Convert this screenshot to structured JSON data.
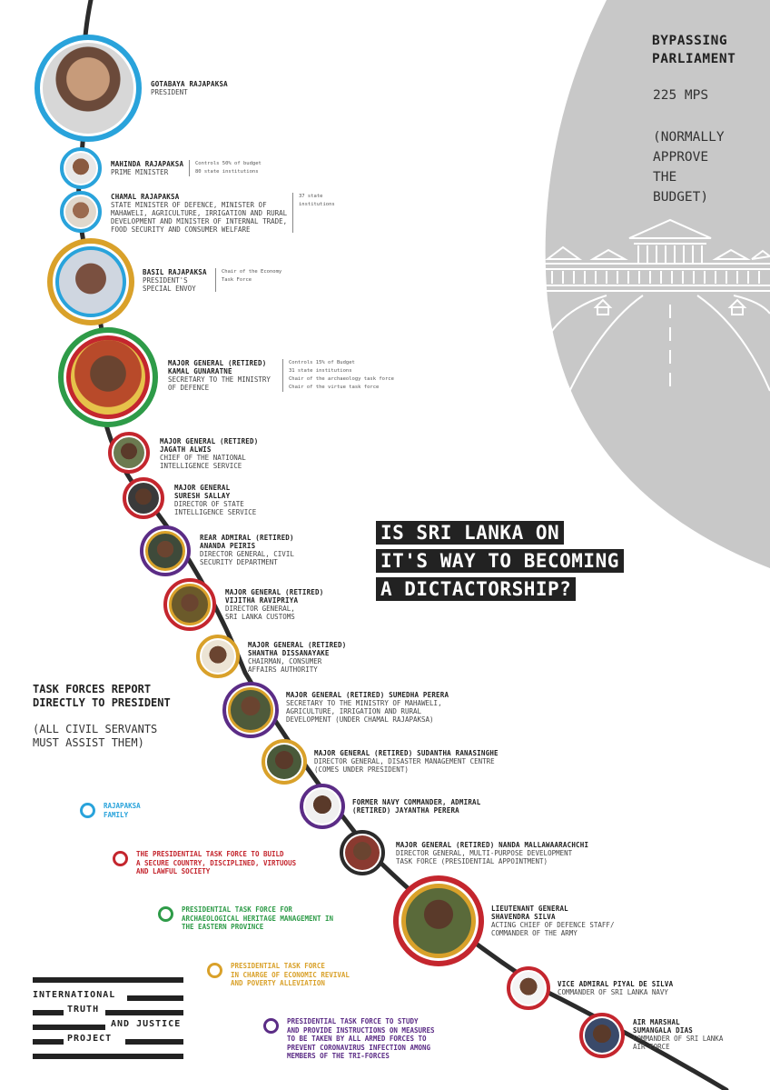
{
  "headline": [
    "IS SRI LANKA ON",
    "IT'S WAY TO BECOMING",
    "A DICTACTORSHIP?"
  ],
  "parliament": {
    "title_line1": "BYPASSING",
    "title_line2": "PARLIAMENT",
    "mps": "225 MPS",
    "note": "(NORMALLY\nAPPROVE\nTHE\nBUDGET)"
  },
  "task_forces": {
    "title": "TASK FORCES REPORT\nDIRECTLY TO PRESIDENT",
    "note": "(ALL CIVIL SERVANTS\nMUST ASSIST THEM)"
  },
  "colors": {
    "rajapaksa_family": "#29a3db",
    "secure_country": "#c4262e",
    "archaeological": "#2e9b48",
    "economic_revival": "#d9a12a",
    "coronavirus": "#5b2c86",
    "timeline": "#2b2b2b",
    "parliament_bg": "#c8c8c8"
  },
  "people": [
    {
      "name": "GOTABAYA RAJAPAKSA",
      "role": "PRESIDENT",
      "notes": ""
    },
    {
      "name": "MAHINDA RAJAPAKSA",
      "role": "PRIME MINISTER",
      "notes": "Controls 50% of budget\n80 state institutions"
    },
    {
      "name": "CHAMAL RAJAPAKSA",
      "role": "STATE MINISTER OF DEFENCE, MINISTER OF\nMAHAWELI, AGRICULTURE, IRRIGATION AND RURAL\nDEVELOPMENT AND MINISTER OF INTERNAL TRADE,\nFOOD SECURITY AND CONSUMER WELFARE",
      "notes": "37 state\ninstitutions"
    },
    {
      "name": "BASIL RAJAPAKSA",
      "role": "PRESIDENT'S\nSPECIAL ENVOY",
      "notes": "Chair of the Economy\nTask Force"
    },
    {
      "name": "MAJOR GENERAL (RETIRED)\nKAMAL GUNARATNE",
      "role": "SECRETARY TO THE MINISTRY\nOF DEFENCE",
      "notes": "Controls 15% of Budget\n31 state institutions\nChair of the archaeology task force\nChair of the virtue task force"
    },
    {
      "name": "MAJOR GENERAL (RETIRED)\nJAGATH ALWIS",
      "role": "CHIEF OF THE NATIONAL\nINTELLIGENCE SERVICE",
      "notes": ""
    },
    {
      "name": "MAJOR GENERAL\nSURESH SALLAY",
      "role": "DIRECTOR OF STATE\nINTELLIGENCE SERVICE",
      "notes": ""
    },
    {
      "name": "REAR ADMIRAL (RETIRED)\nANANDA PEIRIS",
      "role": "DIRECTOR GENERAL, CIVIL\nSECURITY DEPARTMENT",
      "notes": ""
    },
    {
      "name": "MAJOR GENERAL (RETIRED)\nVIJITHA RAVIPRIYA",
      "role": "DIRECTOR GENERAL,\nSRI LANKA CUSTOMS",
      "notes": ""
    },
    {
      "name": "MAJOR GENERAL (RETIRED)\nSHANTHA DISSANAYAKE",
      "role": "CHAIRMAN, CONSUMER\nAFFAIRS AUTHORITY",
      "notes": ""
    },
    {
      "name": "MAJOR GENERAL (RETIRED) SUMEDHA PERERA",
      "role": "SECRETARY TO THE MINISTRY OF MAHAWELI,\nAGRICULTURE, IRRIGATION AND RURAL\nDEVELOPMENT (UNDER CHAMAL RAJAPAKSA)",
      "notes": ""
    },
    {
      "name": "MAJOR GENERAL (RETIRED) SUDANTHA RANASINGHE",
      "role": "DIRECTOR GENERAL, DISASTER MANAGEMENT CENTRE\n(COMES UNDER PRESIDENT)",
      "notes": ""
    },
    {
      "name": "FORMER NAVY COMMANDER, ADMIRAL\n(RETIRED) JAYANTHA PERERA",
      "role": "",
      "notes": ""
    },
    {
      "name": "MAJOR GENERAL (RETIRED) NANDA MALLAWAARACHCHI",
      "role": "DIRECTOR GENERAL, MULTI-PURPOSE DEVELOPMENT\nTASK FORCE (PRESIDENTIAL APPOINTMENT)",
      "notes": ""
    },
    {
      "name": "LIEUTENANT GENERAL\nSHAVENDRA SILVA",
      "role": "ACTING CHIEF OF DEFENCE STAFF/\nCOMMANDER OF THE ARMY",
      "notes": ""
    },
    {
      "name": "VICE ADMIRAL PIYAL DE SILVA",
      "role": "COMMANDER OF SRI LANKA NAVY",
      "notes": ""
    },
    {
      "name": "AIR MARSHAL\nSUMANGALA DIAS",
      "role": "COMMANDER OF SRI LANKA\nAIR FORCE",
      "notes": ""
    }
  ],
  "legend": [
    {
      "label": "RAJAPAKSA\nFAMILY",
      "color": "#29a3db"
    },
    {
      "label": "THE PRESIDENTIAL TASK FORCE TO BUILD\nA SECURE COUNTRY, DISCIPLINED, VIRTUOUS\nAND LAWFUL SOCIETY",
      "color": "#c4262e"
    },
    {
      "label": "PRESIDENTIAL TASK FORCE FOR\nARCHAEOLOGICAL HERITAGE MANAGEMENT IN\nTHE EASTERN PROVINCE",
      "color": "#2e9b48"
    },
    {
      "label": "PRESIDENTIAL TASK FORCE\nIN CHARGE OF  ECONOMIC REVIVAL\nAND POVERTY ALLEVIATION",
      "color": "#d9a12a"
    },
    {
      "label": "PRESIDENTIAL TASK FORCE TO STUDY\nAND PROVIDE INSTRUCTIONS ON MEASURES\nTO BE TAKEN BY ALL ARMED FORCES TO\nPREVENT CORONAVIRUS INFECTION AMONG\nMEMBERS OF THE TRI-FORCES",
      "color": "#5b2c86"
    }
  ],
  "logo": {
    "line1": "INTERNATIONAL",
    "line2": "TRUTH",
    "line3": "AND JUSTICE",
    "line4": "PROJECT"
  }
}
